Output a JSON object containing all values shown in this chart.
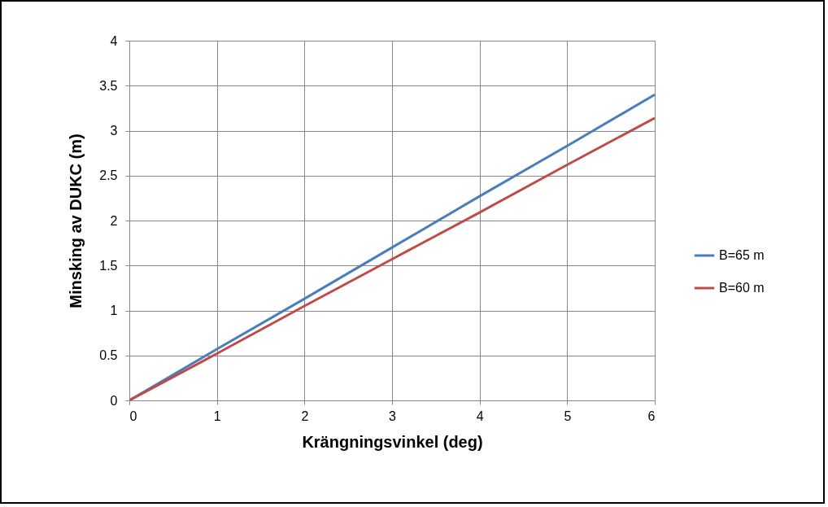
{
  "chart_data": {
    "type": "line",
    "xlabel": "Krängningsvinkel (deg)",
    "ylabel": "Minsking av DUKC (m)",
    "x": [
      0,
      1,
      2,
      3,
      4,
      5,
      6
    ],
    "series": [
      {
        "name": "B=65 m",
        "color": "#4a7ebb",
        "values": [
          0,
          0.57,
          1.13,
          1.7,
          2.27,
          2.83,
          3.4
        ]
      },
      {
        "name": "B=60 m",
        "color": "#be4b48",
        "values": [
          0,
          0.52,
          1.05,
          1.57,
          2.09,
          2.62,
          3.14
        ]
      }
    ],
    "xlim": [
      0,
      6
    ],
    "xticks": [
      0,
      1,
      2,
      3,
      4,
      5,
      6
    ],
    "ylim": [
      0,
      4
    ],
    "yticks": [
      0,
      0.5,
      1,
      1.5,
      2,
      2.5,
      3,
      3.5,
      4
    ],
    "grid": true,
    "legend": "right",
    "marker": "none",
    "line_style": "solid"
  }
}
